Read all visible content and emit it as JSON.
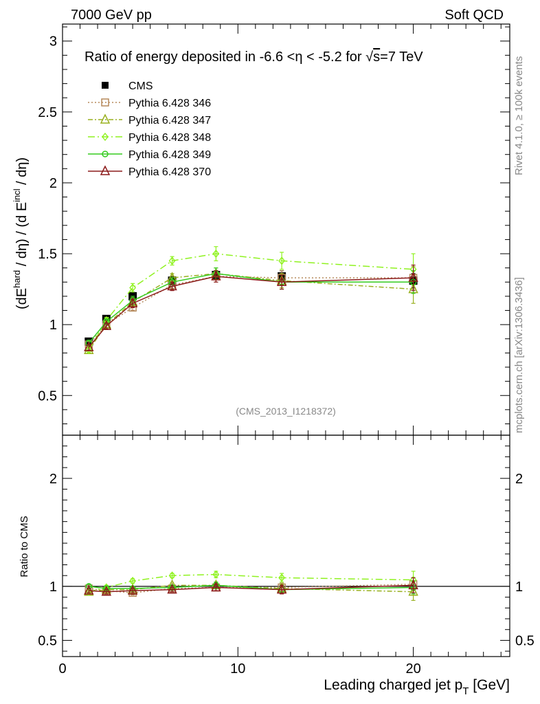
{
  "header": {
    "left": "7000 GeV pp",
    "right": "Soft QCD"
  },
  "side": {
    "rivet": "Rivet 4.1.0, ≥ 100k events",
    "mcplots": "mcplots.cern.ch [arXiv:1306.3436]"
  },
  "colors": {
    "cms": "#000000",
    "p346": "#b5895a",
    "p347": "#99b01f",
    "p348": "#8ff21f",
    "p349": "#33cc1f",
    "p370": "#8b1a1a",
    "refline": "#000000",
    "watermark": "#888888"
  },
  "chart_data": [
    {
      "type": "line",
      "panel": "main",
      "title_parts": {
        "pre": "Ratio of energy deposited in -6.6 <",
        "eta1": "η",
        "mid": " < -5.2 for ",
        "sqrt": "√",
        "s": "s",
        "post": "=7 TeV"
      },
      "ylabel_parts": {
        "a": "(dE",
        "sup1": "hard",
        "b": " / dη) / (d E",
        "sup2": "incl",
        "c": " / dη)"
      },
      "watermark": "(CMS_2013_I1218372)",
      "xlim": [
        0,
        25.5
      ],
      "ylim": [
        0.22,
        3.12
      ],
      "x_ticks": [
        0,
        10,
        20
      ],
      "x_tick_labels": [
        "0",
        "10",
        "20"
      ],
      "y_ticks": [
        0.5,
        1,
        1.5,
        2,
        2.5,
        3
      ],
      "y_tick_labels": [
        "0.5",
        "1",
        "1.5",
        "2",
        "2.5",
        "3"
      ],
      "legend_position": "top-left",
      "series": [
        {
          "name": "CMS",
          "key": "cms",
          "marker": "filled-square",
          "line": "none",
          "x": [
            1.5,
            2.5,
            4.0,
            6.25,
            8.75,
            12.5,
            20.0
          ],
          "y": [
            0.88,
            1.04,
            1.2,
            1.31,
            1.35,
            1.34,
            1.31
          ],
          "err": [
            0.02,
            0.02,
            0.03,
            0.03,
            0.03,
            0.04,
            0.05
          ]
        },
        {
          "name": "Pythia 6.428 346",
          "key": "p346",
          "marker": "open-square",
          "line": "dotted",
          "x": [
            1.5,
            2.5,
            4.0,
            6.25,
            8.75,
            12.5,
            20.0
          ],
          "y": [
            0.86,
            1.0,
            1.12,
            1.28,
            1.34,
            1.33,
            1.33
          ],
          "err": [
            0.02,
            0.02,
            0.02,
            0.03,
            0.04,
            0.05,
            0.08
          ]
        },
        {
          "name": "Pythia 6.428 347",
          "key": "p347",
          "marker": "open-triangle",
          "line": "dashdot",
          "x": [
            1.5,
            2.5,
            4.0,
            6.25,
            8.75,
            12.5,
            20.0
          ],
          "y": [
            0.82,
            1.0,
            1.16,
            1.33,
            1.36,
            1.31,
            1.25
          ],
          "err": [
            0.02,
            0.02,
            0.03,
            0.03,
            0.04,
            0.05,
            0.1
          ]
        },
        {
          "name": "Pythia 6.428 348",
          "key": "p348",
          "marker": "open-diamond",
          "line": "dashdot-long",
          "x": [
            1.5,
            2.5,
            4.0,
            6.25,
            8.75,
            12.5,
            20.0
          ],
          "y": [
            0.82,
            1.03,
            1.26,
            1.45,
            1.5,
            1.45,
            1.39
          ],
          "err": [
            0.02,
            0.02,
            0.03,
            0.03,
            0.05,
            0.06,
            0.11
          ]
        },
        {
          "name": "Pythia 6.428 349",
          "key": "p349",
          "marker": "open-circle",
          "line": "solid",
          "x": [
            1.5,
            2.5,
            4.0,
            6.25,
            8.75,
            12.5,
            20.0
          ],
          "y": [
            0.87,
            1.02,
            1.17,
            1.3,
            1.36,
            1.3,
            1.3
          ],
          "err": [
            0.02,
            0.02,
            0.03,
            0.03,
            0.04,
            0.05,
            0.08
          ]
        },
        {
          "name": "Pythia 6.428 370",
          "key": "p370",
          "marker": "open-triangle",
          "line": "solid",
          "x": [
            1.5,
            2.5,
            4.0,
            6.25,
            8.75,
            12.5,
            20.0
          ],
          "y": [
            0.84,
            0.99,
            1.15,
            1.27,
            1.34,
            1.3,
            1.33
          ],
          "err": [
            0.02,
            0.02,
            0.03,
            0.03,
            0.04,
            0.05,
            0.09
          ]
        }
      ]
    },
    {
      "type": "line",
      "panel": "ratio",
      "ylabel": "Ratio to CMS",
      "xlabel_parts": {
        "main": "Leading charged jet p",
        "sub": "T",
        "unit": " [GeV]"
      },
      "xlim": [
        0,
        25.5
      ],
      "ylim": [
        0.35,
        2.4
      ],
      "x_ticks": [
        0,
        10,
        20
      ],
      "x_tick_labels": [
        "0",
        "10",
        "20"
      ],
      "y_ticks": [
        0.5,
        1,
        2
      ],
      "y_tick_labels": [
        "0.5",
        "1",
        "2"
      ],
      "reference_line": 1,
      "series": [
        {
          "key": "p346",
          "marker": "open-square",
          "line": "dotted",
          "x": [
            1.5,
            2.5,
            4.0,
            6.25,
            8.75,
            12.5,
            20.0
          ],
          "y": [
            0.98,
            0.96,
            0.94,
            0.98,
            0.99,
            0.99,
            1.02
          ],
          "err": [
            0.02,
            0.02,
            0.02,
            0.02,
            0.03,
            0.04,
            0.06
          ]
        },
        {
          "key": "p347",
          "marker": "open-triangle",
          "line": "dashdot",
          "x": [
            1.5,
            2.5,
            4.0,
            6.25,
            8.75,
            12.5,
            20.0
          ],
          "y": [
            0.95,
            0.97,
            0.97,
            1.01,
            1.01,
            0.98,
            0.95
          ],
          "err": [
            0.02,
            0.02,
            0.02,
            0.02,
            0.03,
            0.04,
            0.08
          ]
        },
        {
          "key": "p348",
          "marker": "open-diamond",
          "line": "dashdot-long",
          "x": [
            1.5,
            2.5,
            4.0,
            6.25,
            8.75,
            12.5,
            20.0
          ],
          "y": [
            0.95,
            0.99,
            1.05,
            1.1,
            1.11,
            1.08,
            1.06
          ],
          "err": [
            0.02,
            0.02,
            0.02,
            0.02,
            0.03,
            0.04,
            0.08
          ]
        },
        {
          "key": "p349",
          "marker": "open-circle",
          "line": "solid",
          "x": [
            1.5,
            2.5,
            4.0,
            6.25,
            8.75,
            12.5,
            20.0
          ],
          "y": [
            1.0,
            0.98,
            0.98,
            0.99,
            1.01,
            0.97,
            0.99
          ],
          "err": [
            0.02,
            0.02,
            0.02,
            0.02,
            0.03,
            0.04,
            0.06
          ]
        },
        {
          "key": "p370",
          "marker": "open-triangle",
          "line": "solid",
          "x": [
            1.5,
            2.5,
            4.0,
            6.25,
            8.75,
            12.5,
            20.0
          ],
          "y": [
            0.96,
            0.95,
            0.96,
            0.97,
            0.99,
            0.97,
            1.01
          ],
          "err": [
            0.02,
            0.02,
            0.02,
            0.02,
            0.03,
            0.04,
            0.07
          ]
        }
      ]
    }
  ]
}
